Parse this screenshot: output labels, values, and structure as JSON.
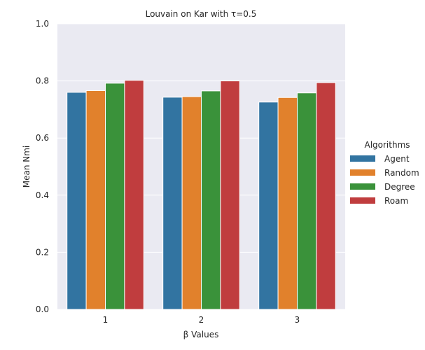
{
  "chart_data": {
    "type": "bar",
    "title": "Louvain on Kar with τ=0.5",
    "xlabel": "β Values",
    "ylabel": "Mean Nmi",
    "categories": [
      "1",
      "2",
      "3"
    ],
    "ylim": [
      0,
      1.0
    ],
    "yticks": [
      "0.0",
      "0.2",
      "0.4",
      "0.6",
      "0.8",
      "1.0"
    ],
    "grid": true,
    "legend_title": "Algorithms",
    "legend_position": "right",
    "series": [
      {
        "name": "Agent",
        "color": "#3274a1",
        "values": [
          0.76,
          0.743,
          0.726
        ]
      },
      {
        "name": "Random",
        "color": "#e1812c",
        "values": [
          0.766,
          0.745,
          0.742
        ]
      },
      {
        "name": "Degree",
        "color": "#3a923a",
        "values": [
          0.792,
          0.765,
          0.758
        ]
      },
      {
        "name": "Roam",
        "color": "#c03d3e",
        "values": [
          0.802,
          0.8,
          0.794
        ]
      }
    ]
  }
}
